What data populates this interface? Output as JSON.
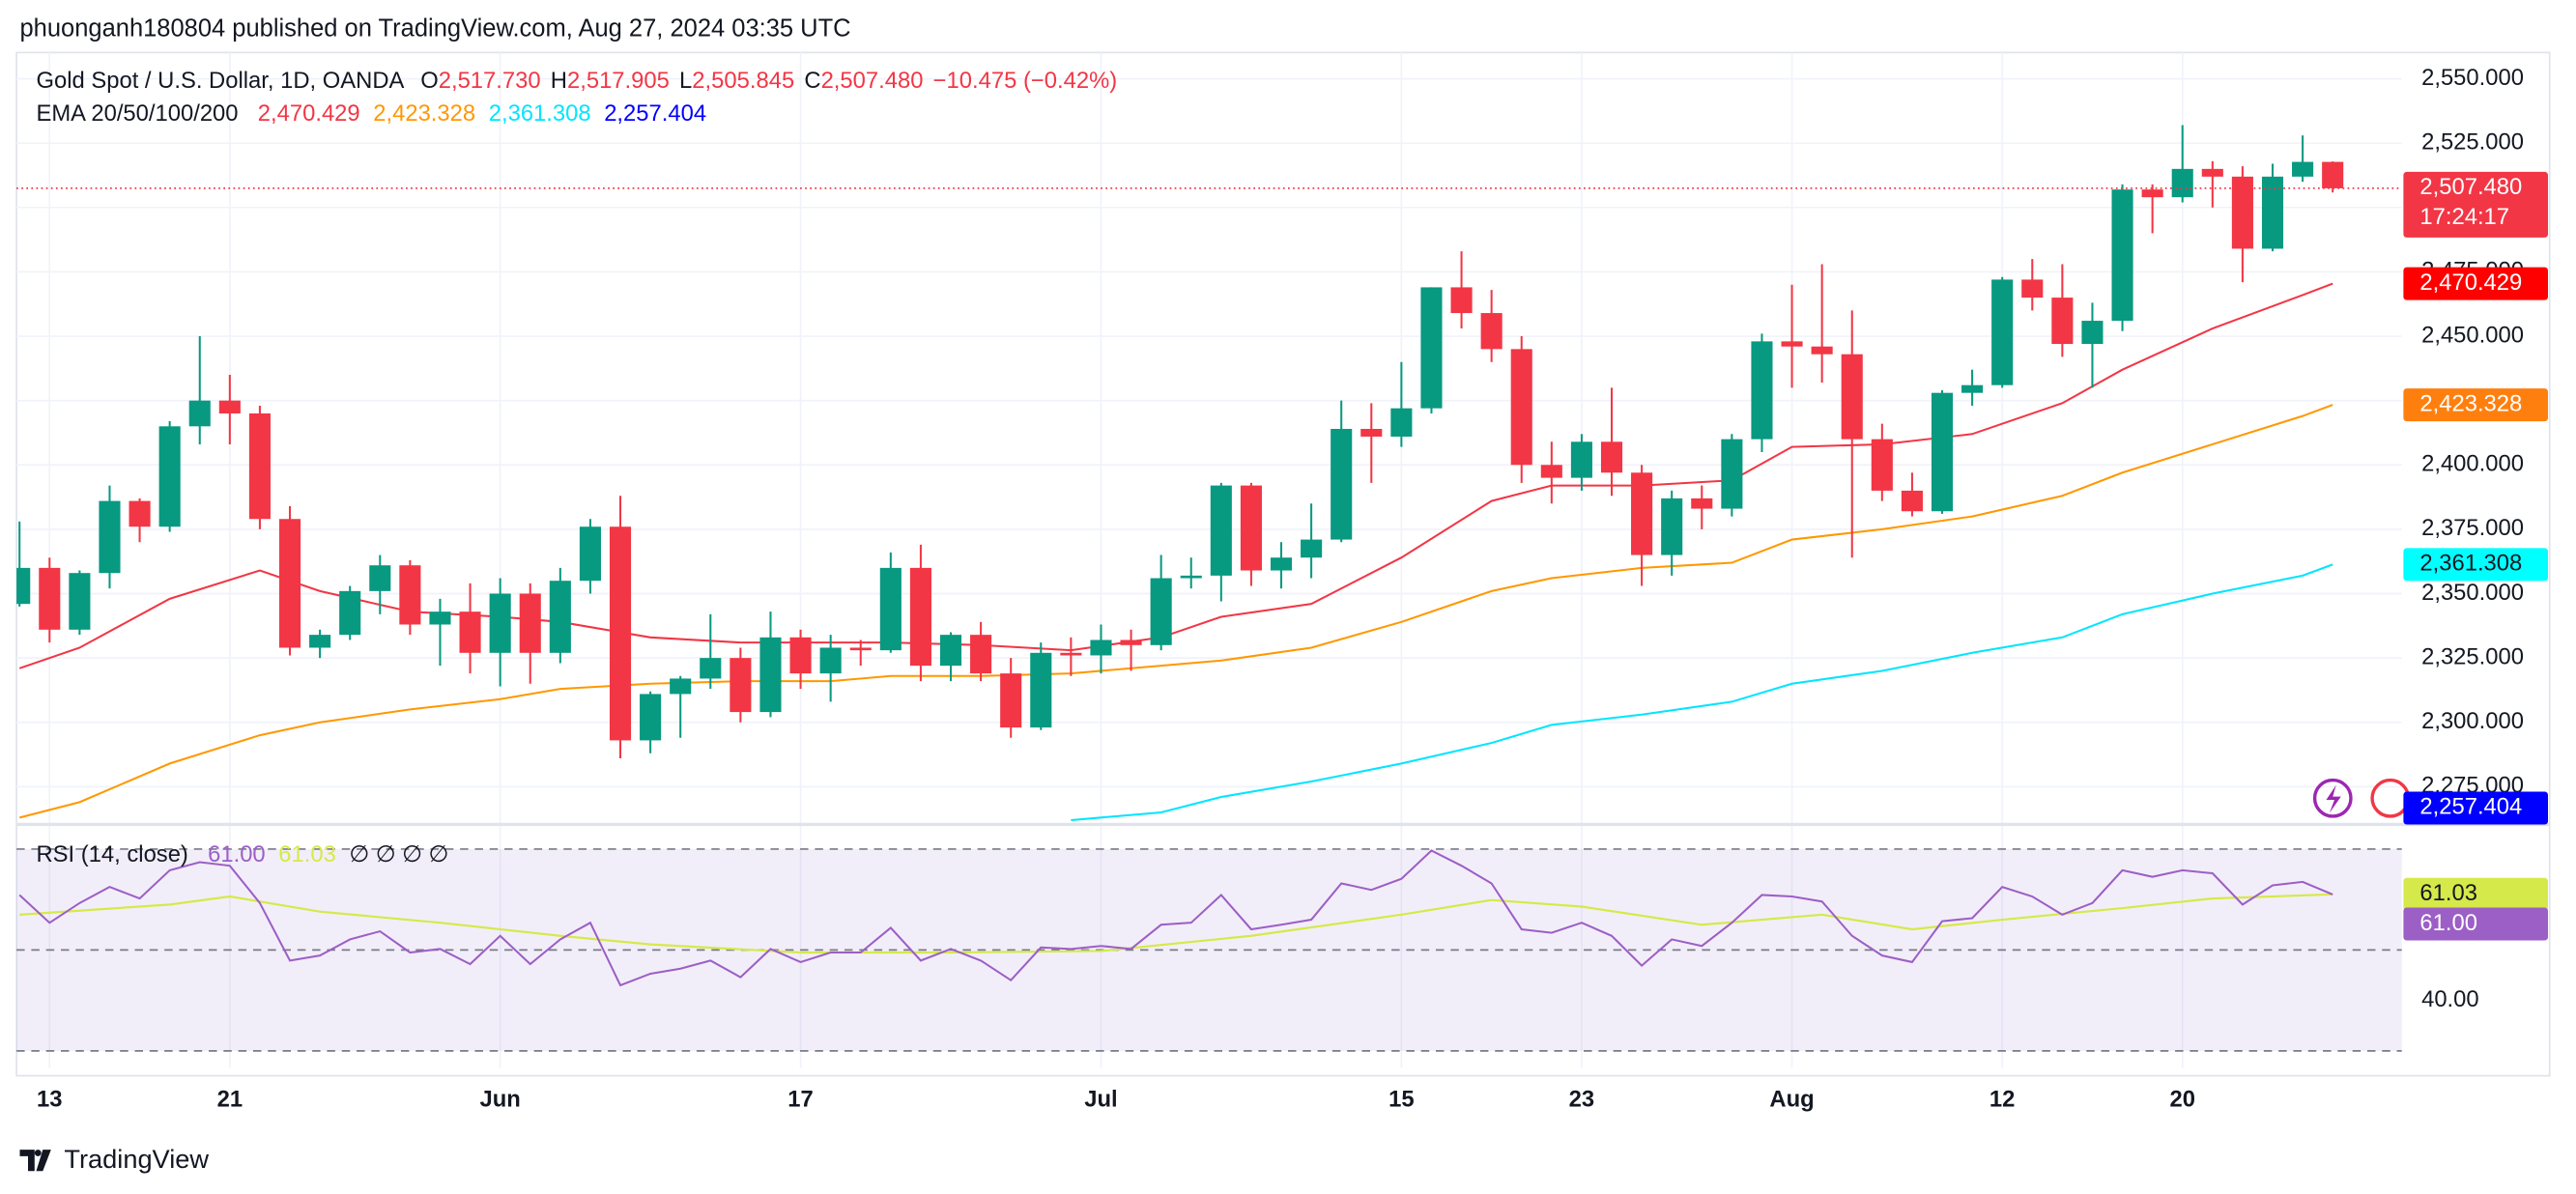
{
  "header": {
    "byline": "phuonganh180804 published on TradingView.com, Aug 27, 2024 03:35 UTC"
  },
  "footer": {
    "brand": "TradingView"
  },
  "chart_data": {
    "type": "candlestick",
    "title": "Gold Spot / U.S. Dollar, 1D, OANDA",
    "ohlc_labels": [
      {
        "key": "O",
        "value": "2,517.730"
      },
      {
        "key": "H",
        "value": "2,517.905"
      },
      {
        "key": "L",
        "value": "2,505.845"
      },
      {
        "key": "C",
        "value": "2,507.480"
      }
    ],
    "change": "−10.475 (−0.42%)",
    "countdown": "17:24:17",
    "up_color": "#089981",
    "down_color": "#f23645",
    "open": [
      2346,
      2360,
      2336,
      2358,
      2386,
      2376,
      2415,
      2425,
      2420,
      2379,
      2329,
      2334,
      2351,
      2361,
      2338,
      2343,
      2327,
      2350,
      2327,
      2355,
      2376,
      2293,
      2311,
      2317,
      2325,
      2304,
      2333,
      2319,
      2329,
      2328,
      2360,
      2322,
      2334,
      2319,
      2298,
      2327,
      2326,
      2332,
      2330,
      2356,
      2357,
      2392,
      2359,
      2364,
      2371,
      2414,
      2411,
      2422,
      2469,
      2459,
      2445,
      2400,
      2395,
      2409,
      2397,
      2365,
      2387,
      2383,
      2410,
      2448,
      2446,
      2443,
      2410,
      2390,
      2382,
      2428,
      2431,
      2472,
      2465,
      2447,
      2456,
      2507,
      2504,
      2515,
      2512,
      2484,
      2512,
      2517.73
    ],
    "high": [
      2378,
      2364,
      2359,
      2392,
      2387,
      2417,
      2450,
      2435,
      2423,
      2384,
      2336,
      2353,
      2365,
      2363,
      2348,
      2354,
      2356,
      2354,
      2360,
      2379,
      2388,
      2312,
      2318,
      2342,
      2329,
      2343,
      2336,
      2334,
      2332,
      2366,
      2369,
      2335,
      2339,
      2325,
      2331,
      2333,
      2338,
      2336,
      2365,
      2364,
      2393,
      2393,
      2370,
      2385,
      2425,
      2424,
      2440,
      2469,
      2483,
      2468,
      2450,
      2409,
      2412,
      2430,
      2400,
      2390,
      2392,
      2412,
      2451,
      2470,
      2478,
      2460,
      2416,
      2397,
      2429,
      2437,
      2473,
      2480,
      2478,
      2463,
      2509,
      2509,
      2532,
      2518,
      2516,
      2517,
      2528,
      2517.905
    ],
    "low": [
      2345,
      2331,
      2334,
      2352,
      2370,
      2374,
      2408,
      2408,
      2375,
      2326,
      2325,
      2332,
      2342,
      2334,
      2322,
      2319,
      2314,
      2315,
      2323,
      2350,
      2286,
      2288,
      2294,
      2313,
      2300,
      2302,
      2313,
      2308,
      2322,
      2327,
      2316,
      2316,
      2316,
      2294,
      2297,
      2318,
      2319,
      2320,
      2328,
      2352,
      2347,
      2353,
      2352,
      2356,
      2370,
      2393,
      2407,
      2420,
      2453,
      2440,
      2393,
      2385,
      2390,
      2388,
      2353,
      2357,
      2375,
      2380,
      2405,
      2430,
      2432,
      2364,
      2386,
      2380,
      2381,
      2423,
      2430,
      2460,
      2442,
      2430,
      2452,
      2490,
      2502,
      2500,
      2471,
      2483,
      2510,
      2505.845
    ],
    "close": [
      2360,
      2336,
      2358,
      2386,
      2376,
      2415,
      2425,
      2420,
      2379,
      2329,
      2334,
      2351,
      2361,
      2338,
      2343,
      2327,
      2350,
      2327,
      2355,
      2376,
      2293,
      2311,
      2317,
      2325,
      2304,
      2333,
      2319,
      2329,
      2328,
      2360,
      2322,
      2334,
      2319,
      2298,
      2327,
      2326,
      2332,
      2330,
      2356,
      2357,
      2392,
      2359,
      2364,
      2371,
      2414,
      2411,
      2422,
      2469,
      2459,
      2445,
      2400,
      2395,
      2409,
      2397,
      2365,
      2387,
      2383,
      2410,
      2448,
      2446,
      2443,
      2410,
      2390,
      2382,
      2428,
      2431,
      2472,
      2465,
      2447,
      2456,
      2507,
      2504,
      2515,
      2512,
      2484,
      2512,
      2517.73,
      2507.48
    ],
    "last_close_label": "2,507.480",
    "xlim": [
      -0.1,
      79.3
    ],
    "xticks": [
      {
        "value": 1,
        "label": "13"
      },
      {
        "value": 7,
        "label": "21"
      },
      {
        "value": 16,
        "label": "Jun"
      },
      {
        "value": 26,
        "label": "17"
      },
      {
        "value": 36,
        "label": "Jul"
      },
      {
        "value": 46,
        "label": "15"
      },
      {
        "value": 52,
        "label": "23"
      },
      {
        "value": 59,
        "label": "Aug"
      },
      {
        "value": 66,
        "label": "12"
      },
      {
        "value": 72,
        "label": "20"
      }
    ],
    "ylim": [
      2261.6,
      2560.2
    ],
    "yticks": [
      {
        "value": 2275,
        "label": "2,275.000"
      },
      {
        "value": 2300,
        "label": "2,300.000"
      },
      {
        "value": 2325,
        "label": "2,325.000"
      },
      {
        "value": 2350,
        "label": "2,350.000"
      },
      {
        "value": 2375,
        "label": "2,375.000"
      },
      {
        "value": 2400,
        "label": "2,400.000"
      },
      {
        "value": 2425,
        "label": "2,425.000"
      },
      {
        "value": 2450,
        "label": "2,450.000"
      },
      {
        "value": 2475,
        "label": "2,475.000"
      },
      {
        "value": 2500,
        "label": "2,500.000"
      },
      {
        "value": 2525,
        "label": "2,525.000"
      },
      {
        "value": 2550,
        "label": "2,550.000"
      }
    ],
    "grid": true,
    "ema": {
      "name": "EMA 20/50/100/200",
      "lines": [
        {
          "color": "#f23645",
          "box": "#ff0000",
          "last": {
            "value": 2470.429,
            "label": "2,470.429"
          },
          "x": [
            0,
            2,
            5,
            8,
            10,
            13,
            16,
            18,
            21,
            24,
            27,
            29,
            32,
            35,
            38,
            40,
            43,
            46,
            49,
            51,
            54,
            57,
            59,
            62,
            65,
            68,
            70,
            73,
            76,
            77
          ],
          "values": [
            2321,
            2329,
            2348,
            2359,
            2351,
            2343,
            2341,
            2339,
            2333,
            2331,
            2331,
            2331,
            2330,
            2328,
            2333,
            2341,
            2346,
            2364,
            2386,
            2392,
            2392,
            2394,
            2407,
            2408,
            2412,
            2424,
            2437,
            2453,
            2466,
            2470.429
          ]
        },
        {
          "color": "#ff9800",
          "box": "#ff7f0e",
          "last": {
            "value": 2423.328,
            "label": "2,423.328"
          },
          "x": [
            0,
            2,
            5,
            8,
            10,
            13,
            16,
            18,
            21,
            24,
            27,
            29,
            32,
            35,
            38,
            40,
            43,
            46,
            49,
            51,
            54,
            57,
            59,
            62,
            65,
            68,
            70,
            73,
            76,
            77
          ],
          "values": [
            2263,
            2269,
            2284,
            2295,
            2300,
            2305,
            2309,
            2313,
            2315,
            2316,
            2316,
            2318,
            2318,
            2319,
            2322,
            2324,
            2329,
            2339,
            2351,
            2356,
            2360,
            2362,
            2371,
            2375,
            2380,
            2388,
            2397,
            2408,
            2419,
            2423.328
          ]
        },
        {
          "color": "#00e5ff",
          "box": "#00ffff",
          "last": {
            "value": 2361.308,
            "label": "2,361.308"
          },
          "x": [
            35,
            38,
            40,
            43,
            46,
            49,
            51,
            54,
            57,
            59,
            62,
            65,
            68,
            70,
            73,
            76,
            77
          ],
          "values": [
            2262,
            2265,
            2271,
            2277,
            2284,
            2292,
            2299,
            2303,
            2308,
            2315,
            2320,
            2327,
            2333,
            2342,
            2350,
            2357,
            2361.308
          ]
        },
        {
          "color": "#0000ff",
          "box": "#0000ff",
          "last": {
            "value": 2257.404,
            "label": "2,257.404"
          }
        }
      ]
    },
    "rsi": {
      "name": "RSI (14, close)",
      "color": "#9c5fc6",
      "placeholders": "∅ ∅ ∅ ∅",
      "values": [
        60.9,
        55.4,
        59.3,
        62.5,
        60.2,
        65.8,
        67.4,
        66.7,
        59.3,
        47.9,
        48.9,
        52.1,
        53.7,
        49.5,
        50.2,
        47.2,
        52.8,
        47.2,
        52.1,
        55.4,
        43.0,
        45.3,
        46.3,
        47.9,
        44.6,
        50.2,
        47.6,
        49.5,
        49.5,
        54.4,
        47.9,
        50.2,
        47.9,
        44.0,
        50.5,
        50.2,
        50.8,
        50.2,
        55.0,
        55.4,
        60.9,
        54.1,
        55.0,
        56.0,
        63.2,
        61.9,
        64.1,
        69.7,
        66.7,
        63.2,
        54.1,
        53.4,
        55.4,
        52.8,
        46.9,
        52.1,
        50.8,
        55.4,
        60.9,
        60.6,
        59.6,
        52.8,
        48.9,
        47.6,
        55.7,
        56.3,
        62.5,
        60.6,
        57.0,
        59.3,
        65.8,
        64.5,
        65.8,
        65.2,
        59.0,
        62.8,
        63.5,
        61.0
      ],
      "last": {
        "value": 61.0,
        "label": "61.00"
      },
      "ma": {
        "color": "#d6e94a",
        "x": [
          0,
          5,
          7,
          10,
          14,
          18,
          21,
          26,
          31,
          36,
          41,
          46,
          49,
          52,
          56,
          60,
          63,
          66,
          70,
          73,
          77
        ],
        "values": [
          57,
          59,
          60.6,
          57.6,
          55.4,
          52.8,
          51.1,
          49.5,
          49.5,
          49.8,
          52.8,
          57,
          59.9,
          58.6,
          55,
          57,
          54.1,
          56,
          58.3,
          60.2,
          61.03
        ],
        "last": {
          "value": 61.03,
          "label": "61.03"
        }
      },
      "levels": [
        70,
        50,
        30
      ],
      "ylim": [
        26.7,
        73.9
      ],
      "yticks": [
        {
          "value": 40,
          "label": "40.00"
        }
      ]
    }
  }
}
